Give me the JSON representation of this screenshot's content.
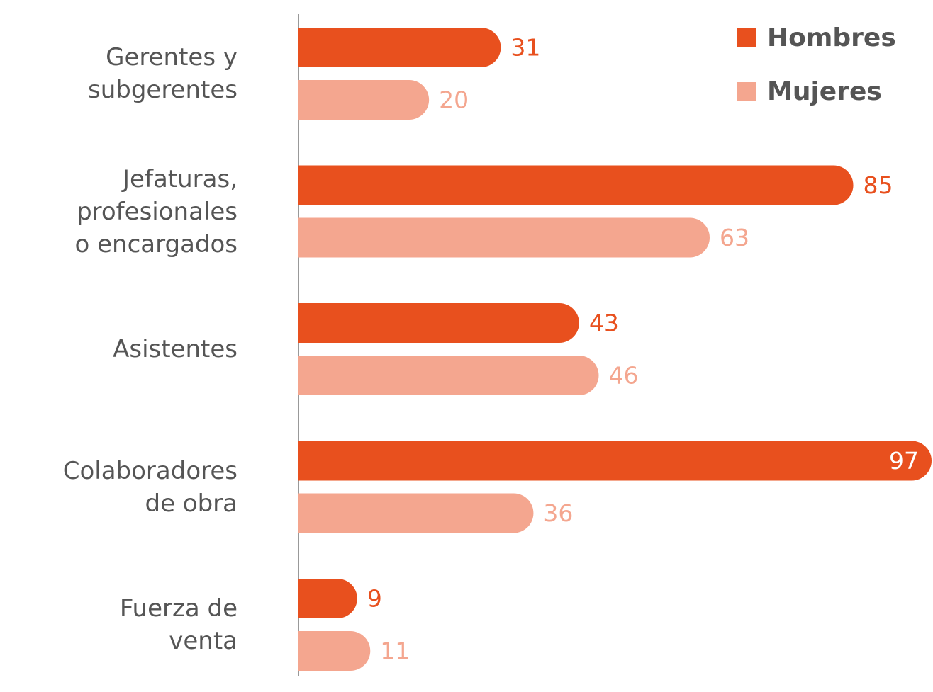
{
  "chart_data": {
    "type": "bar",
    "orientation": "horizontal",
    "categories": [
      "Gerentes y\nsubgerentes",
      "Jefaturas,\nprofesionales\no encargados",
      "Asistentes",
      "Colaboradores\nde obra",
      "Fuerza de\nventa"
    ],
    "series": [
      {
        "name": "Hombres",
        "color": "#e8501e",
        "values": [
          31,
          85,
          43,
          97,
          9
        ]
      },
      {
        "name": "Mujeres",
        "color": "#f4a68f",
        "values": [
          20,
          63,
          46,
          36,
          11
        ]
      }
    ],
    "legend": "top-right"
  }
}
